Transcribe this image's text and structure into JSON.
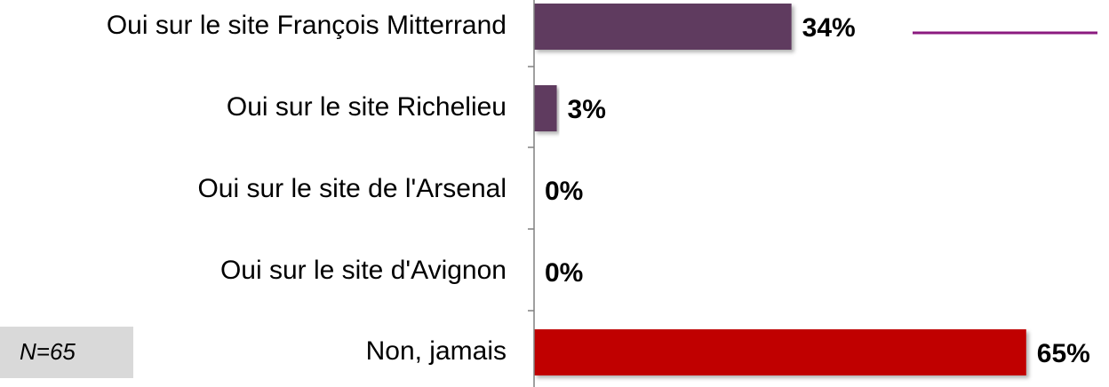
{
  "chart_data": {
    "type": "bar",
    "orientation": "horizontal",
    "categories": [
      "Oui sur le site François Mitterrand",
      "Oui sur le site Richelieu",
      "Oui sur le site de l'Arsenal",
      "Oui sur le site d'Avignon",
      "Non, jamais"
    ],
    "values": [
      34,
      3,
      0,
      0,
      65
    ],
    "value_labels": [
      "34%",
      "3%",
      "0%",
      "0%",
      "65%"
    ],
    "colors": [
      "#5f3b5e",
      "#5f3b5e",
      "#5f3b5e",
      "#5f3b5e",
      "#c00000"
    ],
    "annotation": "N=65"
  }
}
